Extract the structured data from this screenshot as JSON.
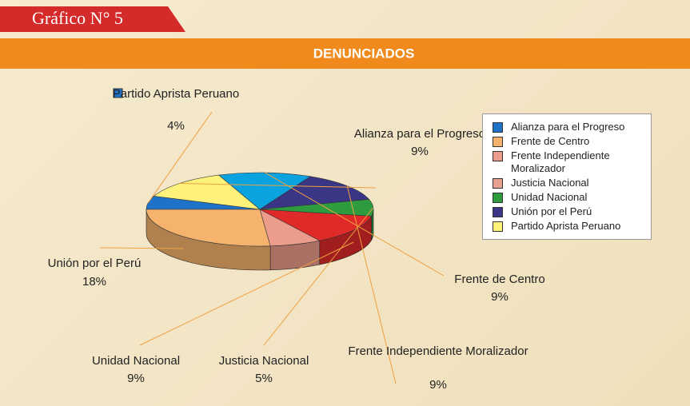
{
  "figure_label": "Gráfico N° 5",
  "chart_data": {
    "type": "pie",
    "title": "DENUNCIADOS",
    "categories": [
      "Partido Aprista Peruano",
      "Alianza para el Progreso",
      "Frente de Centro",
      "Frente Independiente Moralizador",
      "Justicia Nacional",
      "Unidad Nacional",
      null,
      "Unión por el Perú"
    ],
    "values": [
      4,
      9,
      9,
      9,
      5,
      9,
      5,
      18
    ],
    "value_labels": [
      "4%",
      "9%",
      "9%",
      "9%",
      "5%",
      "9%",
      null,
      "18%"
    ],
    "colors": [
      "#1e73c8",
      "#fff27a",
      "#0aa3e0",
      "#3a3585",
      "#2e9b3e",
      "#e02a2a",
      "#ec9c8a",
      "#f5b36e"
    ],
    "legend": [
      {
        "name": "Alianza para el Progreso",
        "color": "#1e73c8"
      },
      {
        "name": "Frente de Centro",
        "color": "#f5b36e"
      },
      {
        "name": "Frente Independiente Moralizador",
        "color": "#ec9c8a"
      },
      {
        "name": "Justicia Nacional",
        "color": "#e8a090"
      },
      {
        "name": "Unidad Nacional",
        "color": "#2e9b3e"
      },
      {
        "name": "Unión por el Perú",
        "color": "#3a3585"
      },
      {
        "name": "Partido Aprista Peruano",
        "color": "#fff27a"
      }
    ]
  }
}
